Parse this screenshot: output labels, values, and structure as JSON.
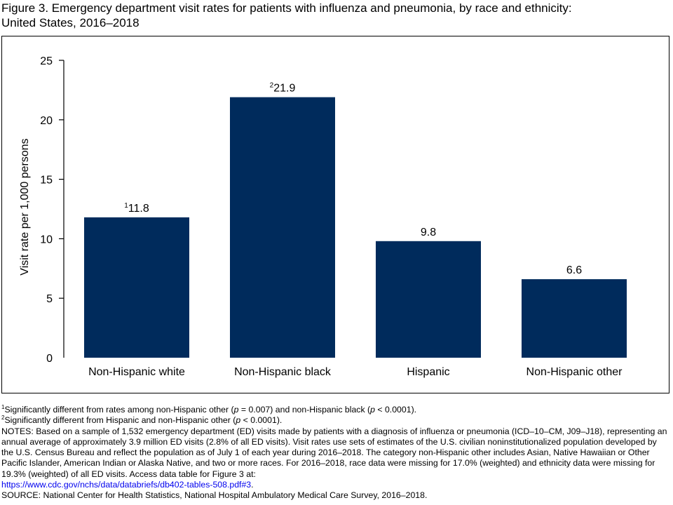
{
  "figure_title_line1": "Figure 3. Emergency department visit rates for patients with influenza and pneumonia, by race and ethnicity:",
  "figure_title_line2": "United States, 2016–2018",
  "chart_data": {
    "type": "bar",
    "title": "Figure 3. Emergency department visit rates for patients with influenza and pneumonia, by race and ethnicity: United States, 2016–2018",
    "categories": [
      "Non-Hispanic white",
      "Non-Hispanic black",
      "Hispanic",
      "Non-Hispanic other"
    ],
    "values": [
      11.8,
      21.9,
      9.8,
      6.6
    ],
    "value_labels": [
      "11.8",
      "21.9",
      "9.8",
      "6.6"
    ],
    "label_superscripts": [
      "1",
      "2",
      "",
      ""
    ],
    "xlabel": "",
    "ylabel": "Visit rate per 1,000 persons",
    "ylim": [
      0,
      25
    ],
    "yticks": [
      0,
      5,
      10,
      15,
      20,
      25
    ],
    "grid": false,
    "bar_color": "#002b5c"
  },
  "footnotes": {
    "note1": {
      "sup": "1",
      "text_a": "Significantly different from rates among non-Hispanic other (",
      "p1": "p",
      "text_b": " = 0.007) and non-Hispanic black (",
      "p2": "p",
      "text_c": " < 0.0001)."
    },
    "note2": {
      "sup": "2",
      "text_a": "Significantly different from Hispanic and non-Hispanic other (",
      "p1": "p",
      "text_b": " < 0.0001)."
    },
    "notes_text": "NOTES: Based on a sample of 1,532 emergency department (ED) visits made by patients with a diagnosis of influenza or pneumonia (ICD–10–CM, J09–J18), representing an annual average of approximately 3.9 million ED visits (2.8% of all ED visits). Visit rates use sets of estimates of the U.S. civilian noninstitutionalized population developed by the U.S. Census Bureau and reflect the population as of July 1 of each year during 2016–2018. The category non-Hispanic other includes Asian, Native Hawaiian or Other Pacific Islander, American Indian or Alaska Native, and two or more races. For 2016–2018, race data were missing for 17.0% (weighted) and ethnicity data were missing for 19.3% (weighted) of all ED visits. Access data table for Figure 3 at:",
    "link_text": "https://www.cdc.gov/nchs/data/databriefs/db402-tables-508.pdf#3",
    "link_suffix": ".",
    "source": "SOURCE: National Center for Health Statistics, National Hospital Ambulatory Medical Care Survey, 2016–2018."
  }
}
